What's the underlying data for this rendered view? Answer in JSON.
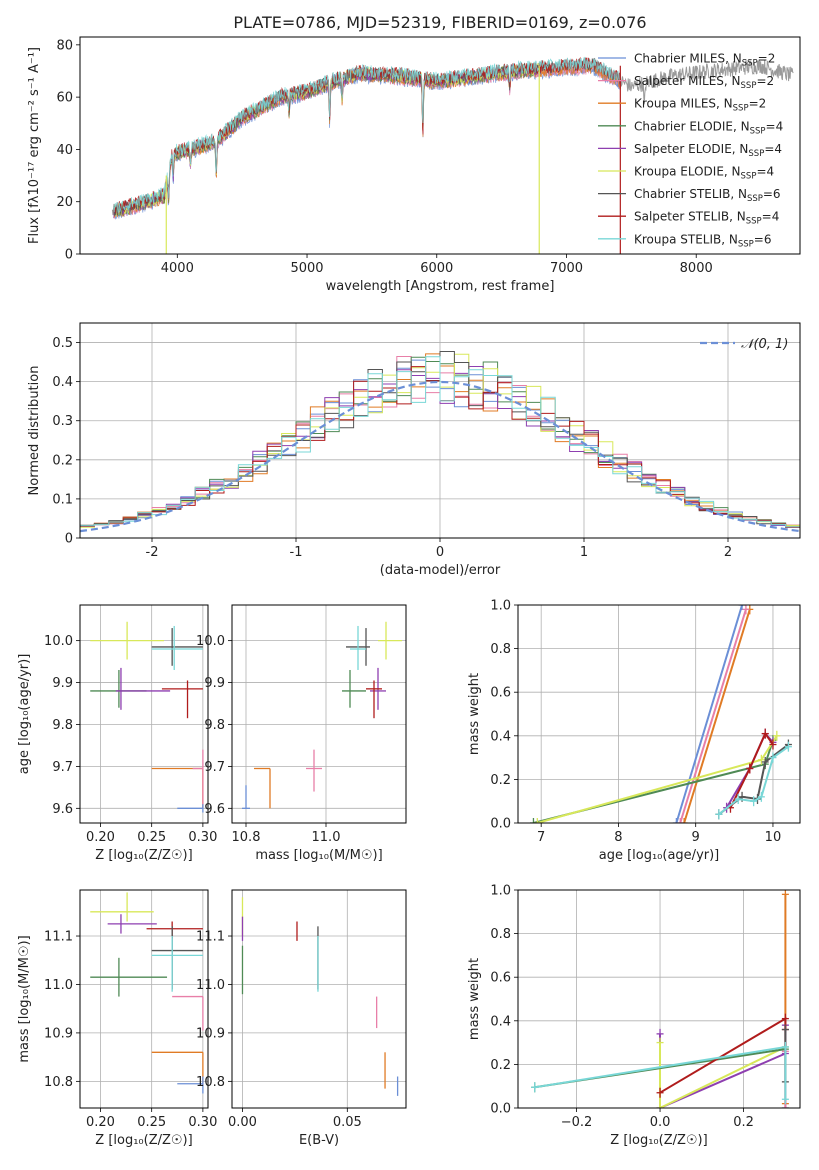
{
  "figure_title": "PLATE=0786, MJD=52319, FIBERID=0169, z=0.076",
  "colors": {
    "Chabrier MILES": "#6b8fd6",
    "Salpeter MILES": "#e87fa8",
    "Kroupa MILES": "#e07b25",
    "Chabrier ELODIE": "#4f8a55",
    "Salpeter ELODIE": "#8e3fb0",
    "Kroupa ELODIE": "#d8e85a",
    "Chabrier STELIB": "#555555",
    "Salpeter STELIB": "#b01c1c",
    "Kroupa STELIB": "#79d7d7"
  },
  "chart_data": [
    {
      "id": "spectrum",
      "type": "line",
      "title": "PLATE=0786, MJD=52319, FIBERID=0169, z=0.076",
      "xlabel": "wavelength [Angstrom, rest frame]",
      "ylabel": "Flux [fλ10⁻¹⁷ erg cm⁻² s⁻¹ A⁻¹]",
      "xlim": [
        3250,
        8800
      ],
      "ylim": [
        0,
        83
      ],
      "xticks": [
        4000,
        5000,
        6000,
        7000,
        8000
      ],
      "yticks": [
        0,
        20,
        40,
        60,
        80
      ],
      "grid": false,
      "legend_position": "right",
      "data_color": "#9a9a9a",
      "continuum": {
        "x": [
          3500,
          3700,
          3900,
          3960,
          4100,
          4300,
          4500,
          4800,
          5000,
          5200,
          5400,
          5700,
          6000,
          6300,
          6600,
          6900,
          7200,
          7500,
          7800,
          8100,
          8500,
          8750
        ],
        "y": [
          16,
          19,
          22,
          38,
          40,
          43,
          52,
          60,
          62,
          66,
          69,
          68,
          66,
          68,
          70,
          71,
          72,
          64,
          68,
          70,
          72,
          68
        ]
      },
      "dips": [
        {
          "x": 3933,
          "depth": 10
        },
        {
          "x": 3968,
          "depth": 9
        },
        {
          "x": 4101,
          "depth": 6
        },
        {
          "x": 4300,
          "depth": 12
        },
        {
          "x": 4861,
          "depth": 6
        },
        {
          "x": 5175,
          "depth": 14
        },
        {
          "x": 5270,
          "depth": 8
        },
        {
          "x": 5893,
          "depth": 20
        },
        {
          "x": 6563,
          "depth": 6
        },
        {
          "x": 7600,
          "depth": 10
        }
      ],
      "legend": [
        {
          "label": "Chabrier MILES, N",
          "sub": "SSP",
          "suffix": "=2",
          "series": "Chabrier MILES"
        },
        {
          "label": "Salpeter MILES, N",
          "sub": "SSP",
          "suffix": "=2",
          "series": "Salpeter MILES"
        },
        {
          "label": "Kroupa MILES, N",
          "sub": "SSP",
          "suffix": "=2",
          "series": "Kroupa MILES"
        },
        {
          "label": "Chabrier ELODIE, N",
          "sub": "SSP",
          "suffix": "=4",
          "series": "Chabrier ELODIE"
        },
        {
          "label": "Salpeter ELODIE, N",
          "sub": "SSP",
          "suffix": "=4",
          "series": "Salpeter ELODIE"
        },
        {
          "label": "Kroupa ELODIE, N",
          "sub": "SSP",
          "suffix": "=4",
          "series": "Kroupa ELODIE"
        },
        {
          "label": "Chabrier STELIB, N",
          "sub": "SSP",
          "suffix": "=6",
          "series": "Chabrier STELIB"
        },
        {
          "label": "Salpeter STELIB, N",
          "sub": "SSP",
          "suffix": "=4",
          "series": "Salpeter STELIB"
        },
        {
          "label": "Kroupa STELIB, N",
          "sub": "SSP",
          "suffix": "=6",
          "series": "Kroupa STELIB"
        }
      ],
      "vertical_drops": [
        {
          "series": "Kroupa ELODIE",
          "x": 3915,
          "y_top": 30
        },
        {
          "series": "Kroupa ELODIE",
          "x": 6790,
          "y_top": 72
        },
        {
          "series": "Salpeter STELIB",
          "x": 7415,
          "y_top": 72
        }
      ]
    },
    {
      "id": "residuals",
      "type": "histogram",
      "xlabel": "(data-model)/error",
      "ylabel": "Normed distribution",
      "xlim": [
        -2.5,
        2.5
      ],
      "ylim": [
        0,
        0.55
      ],
      "xticks": [
        -2,
        -1,
        0,
        1,
        2
      ],
      "yticks": [
        0.0,
        0.1,
        0.2,
        0.3,
        0.4,
        0.5
      ],
      "grid": true,
      "bin_width": 0.1,
      "legend": [
        {
          "label": "𝒩(0, 1)",
          "style": "dashed",
          "color": "#6b8fd6"
        }
      ],
      "legend_position": "top-right",
      "gaussian": {
        "mu": 0,
        "sigma": 1
      }
    },
    {
      "id": "age-vs-Z",
      "type": "errorbar",
      "xlabel": "Z [log₁₀(Z/Z☉)]",
      "ylabel": "age  [log₁₀(age/yr)]",
      "xlim": [
        0.18,
        0.305
      ],
      "ylim": [
        9.565,
        10.085
      ],
      "xticks": [
        0.2,
        0.25,
        0.3
      ],
      "xtick_labels": [
        "0.20",
        "0.25",
        "0.30"
      ],
      "yticks": [
        9.6,
        9.7,
        9.8,
        9.9,
        10.0
      ],
      "ytick_labels": [
        "9.6",
        "9.7",
        "9.8",
        "9.9",
        "10.0"
      ],
      "grid": true,
      "points": [
        {
          "series": "Kroupa ELODIE",
          "x": 0.226,
          "y": 10.0,
          "xlo": 0.19,
          "xhi": 0.262,
          "ylo": 9.955,
          "yhi": 10.045
        },
        {
          "series": "Chabrier STELIB",
          "x": 0.27,
          "y": 9.985,
          "xlo": 0.25,
          "xhi": 0.3,
          "ylo": 9.94,
          "yhi": 10.03
        },
        {
          "series": "Kroupa STELIB",
          "x": 0.272,
          "y": 9.98,
          "xlo": 0.25,
          "xhi": 0.3,
          "ylo": 9.93,
          "yhi": 10.035
        },
        {
          "series": "Chabrier ELODIE",
          "x": 0.218,
          "y": 9.88,
          "xlo": 0.19,
          "xhi": 0.245,
          "ylo": 9.84,
          "yhi": 9.93
        },
        {
          "series": "Salpeter ELODIE",
          "x": 0.22,
          "y": 9.88,
          "xlo": 0.215,
          "xhi": 0.268,
          "ylo": 9.835,
          "yhi": 9.935
        },
        {
          "series": "Salpeter STELIB",
          "x": 0.285,
          "y": 9.885,
          "xlo": 0.26,
          "xhi": 0.3,
          "ylo": 9.815,
          "yhi": 9.905
        },
        {
          "series": "Kroupa MILES",
          "x": 0.3,
          "y": 9.695,
          "xlo": 0.25,
          "xhi": 0.3,
          "ylo": 9.6,
          "yhi": 9.695
        },
        {
          "series": "Salpeter MILES",
          "x": 0.3,
          "y": 9.695,
          "xlo": 0.29,
          "xhi": 0.3,
          "ylo": 9.6,
          "yhi": 9.74
        },
        {
          "series": "Chabrier MILES",
          "x": 0.3,
          "y": 9.6,
          "xlo": 0.275,
          "xhi": 0.3,
          "ylo": 9.59,
          "yhi": 9.61
        }
      ]
    },
    {
      "id": "age-vs-mass",
      "type": "errorbar",
      "xlabel": "mass [log₁₀(M/M☉)]",
      "ylabel": "",
      "xlim": [
        10.765,
        11.2
      ],
      "ylim": [
        9.565,
        10.085
      ],
      "xticks": [
        10.8,
        11.0
      ],
      "xtick_labels": [
        "10.8",
        "11.0"
      ],
      "yticks": [
        9.6,
        9.7,
        9.8,
        9.9,
        10.0
      ],
      "ytick_labels": [
        "9.6",
        "9.7",
        "9.8",
        "9.9",
        "10.0"
      ],
      "grid": true,
      "points": [
        {
          "series": "Kroupa ELODIE",
          "x": 11.15,
          "y": 10.0,
          "xlo": 11.13,
          "xhi": 11.19,
          "ylo": 9.955,
          "yhi": 10.045
        },
        {
          "series": "Chabrier STELIB",
          "x": 11.1,
          "y": 9.985,
          "xlo": 11.05,
          "xhi": 11.11,
          "ylo": 9.94,
          "yhi": 10.03
        },
        {
          "series": "Kroupa STELIB",
          "x": 11.08,
          "y": 9.98,
          "xlo": 11.06,
          "xhi": 11.1,
          "ylo": 9.93,
          "yhi": 10.035
        },
        {
          "series": "Chabrier ELODIE",
          "x": 11.06,
          "y": 9.88,
          "xlo": 11.04,
          "xhi": 11.1,
          "ylo": 9.84,
          "yhi": 9.93
        },
        {
          "series": "Salpeter ELODIE",
          "x": 11.13,
          "y": 9.88,
          "xlo": 11.11,
          "xhi": 11.15,
          "ylo": 9.835,
          "yhi": 9.935
        },
        {
          "series": "Salpeter STELIB",
          "x": 11.12,
          "y": 9.885,
          "xlo": 11.1,
          "xhi": 11.14,
          "ylo": 9.815,
          "yhi": 9.905
        },
        {
          "series": "Kroupa MILES",
          "x": 10.86,
          "y": 9.695,
          "xlo": 10.82,
          "xhi": 10.86,
          "ylo": 9.6,
          "yhi": 9.695
        },
        {
          "series": "Salpeter MILES",
          "x": 10.97,
          "y": 9.695,
          "xlo": 10.95,
          "xhi": 10.99,
          "ylo": 9.64,
          "yhi": 9.74
        },
        {
          "series": "Chabrier MILES",
          "x": 10.8,
          "y": 9.6,
          "xlo": 10.79,
          "xhi": 10.81,
          "ylo": 9.6,
          "yhi": 9.655
        }
      ]
    },
    {
      "id": "mass-weight-vs-age",
      "type": "line",
      "xlabel": "age  [log₁₀(age/yr)]",
      "ylabel": "mass weight",
      "xlim": [
        6.7,
        10.35
      ],
      "ylim": [
        0,
        1
      ],
      "xticks": [
        7,
        8,
        9,
        10
      ],
      "xtick_labels": [
        "7",
        "8",
        "9",
        "10"
      ],
      "yticks": [
        0.0,
        0.2,
        0.4,
        0.6,
        0.8,
        1.0
      ],
      "ytick_labels": [
        "0.0",
        "0.2",
        "0.4",
        "0.6",
        "0.8",
        "1.0"
      ],
      "grid": true,
      "series": [
        {
          "name": "Chabrier MILES",
          "x": [
            8.75,
            9.6
          ],
          "y": [
            0.0,
            1.0
          ]
        },
        {
          "name": "Kroupa MILES",
          "x": [
            8.85,
            9.7
          ],
          "y": [
            0.0,
            0.98
          ]
        },
        {
          "name": "Salpeter MILES",
          "x": [
            8.8,
            9.65
          ],
          "y": [
            0.0,
            0.98
          ]
        },
        {
          "name": "Chabrier ELODIE",
          "x": [
            6.9,
            9.9,
            10.0
          ],
          "y": [
            0.0,
            0.27,
            0.38
          ]
        },
        {
          "name": "Salpeter ELODIE",
          "x": [
            9.4,
            9.7,
            9.9,
            10.0
          ],
          "y": [
            0.07,
            0.25,
            0.41,
            0.37
          ]
        },
        {
          "name": "Kroupa ELODIE",
          "x": [
            6.95,
            9.85,
            10.05
          ],
          "y": [
            0.0,
            0.29,
            0.4
          ]
        },
        {
          "name": "Chabrier STELIB",
          "x": [
            9.3,
            9.6,
            9.8,
            9.9,
            10.2
          ],
          "y": [
            0.04,
            0.12,
            0.11,
            0.28,
            0.36
          ]
        },
        {
          "name": "Salpeter STELIB",
          "x": [
            9.45,
            9.7,
            9.9,
            10.0
          ],
          "y": [
            0.07,
            0.25,
            0.41,
            0.36
          ]
        },
        {
          "name": "Kroupa STELIB",
          "x": [
            9.3,
            9.55,
            9.75,
            9.85,
            10.0,
            10.2
          ],
          "y": [
            0.04,
            0.11,
            0.1,
            0.12,
            0.3,
            0.35
          ]
        }
      ]
    },
    {
      "id": "mass-vs-Z",
      "type": "errorbar",
      "xlabel": "Z [log₁₀(Z/Z☉)]",
      "ylabel": "mass [log₁₀(M/M☉)]",
      "xlim": [
        0.18,
        0.305
      ],
      "ylim": [
        10.745,
        11.195
      ],
      "xticks": [
        0.2,
        0.25,
        0.3
      ],
      "xtick_labels": [
        "0.20",
        "0.25",
        "0.30"
      ],
      "yticks": [
        10.8,
        10.9,
        11.0,
        11.1
      ],
      "ytick_labels": [
        "10.8",
        "10.9",
        "11.0",
        "11.1"
      ],
      "grid": true,
      "points": [
        {
          "series": "Kroupa ELODIE",
          "x": 0.226,
          "y": 11.15,
          "xlo": 0.19,
          "xhi": 0.252,
          "ylo": 11.13,
          "yhi": 11.19
        },
        {
          "series": "Salpeter ELODIE",
          "x": 0.22,
          "y": 11.125,
          "xlo": 0.207,
          "xhi": 0.255,
          "ylo": 11.105,
          "yhi": 11.145
        },
        {
          "series": "Salpeter STELIB",
          "x": 0.27,
          "y": 11.115,
          "xlo": 0.245,
          "xhi": 0.3,
          "ylo": 11.095,
          "yhi": 11.13
        },
        {
          "series": "Chabrier STELIB",
          "x": 0.27,
          "y": 11.07,
          "xlo": 0.25,
          "xhi": 0.3,
          "ylo": 10.99,
          "yhi": 11.12
        },
        {
          "series": "Kroupa STELIB",
          "x": 0.27,
          "y": 11.06,
          "xlo": 0.25,
          "xhi": 0.3,
          "ylo": 10.985,
          "yhi": 11.1
        },
        {
          "series": "Chabrier ELODIE",
          "x": 0.218,
          "y": 11.015,
          "xlo": 0.19,
          "xhi": 0.265,
          "ylo": 10.975,
          "yhi": 11.055
        },
        {
          "series": "Salpeter MILES",
          "x": 0.3,
          "y": 10.975,
          "xlo": 0.27,
          "xhi": 0.3,
          "ylo": 10.905,
          "yhi": 10.975
        },
        {
          "series": "Kroupa MILES",
          "x": 0.3,
          "y": 10.86,
          "xlo": 0.25,
          "xhi": 0.3,
          "ylo": 10.79,
          "yhi": 10.86
        },
        {
          "series": "Chabrier MILES",
          "x": 0.3,
          "y": 10.795,
          "xlo": 0.275,
          "xhi": 0.3,
          "ylo": 10.775,
          "yhi": 10.81
        }
      ]
    },
    {
      "id": "mass-vs-ebv",
      "type": "errorbar",
      "xlabel": "E(B-V)",
      "ylabel": "",
      "xlim": [
        -0.005,
        0.078
      ],
      "ylim": [
        10.745,
        11.195
      ],
      "xticks": [
        0.0,
        0.05
      ],
      "xtick_labels": [
        "0.00",
        "0.05"
      ],
      "yticks": [
        10.8,
        10.9,
        11.0,
        11.1
      ],
      "ytick_labels": [
        "10.8",
        "10.9",
        "11.0",
        "11.1"
      ],
      "grid": true,
      "points": [
        {
          "series": "Kroupa ELODIE",
          "x": 0.0,
          "y": 11.15,
          "xlo": 0.0,
          "xhi": 0.0,
          "ylo": 11.1,
          "yhi": 11.18
        },
        {
          "series": "Chabrier ELODIE",
          "x": 0.0,
          "y": 11.03,
          "xlo": 0.0,
          "xhi": 0.0,
          "ylo": 10.98,
          "yhi": 11.08
        },
        {
          "series": "Salpeter ELODIE",
          "x": 0.0,
          "y": 11.12,
          "xlo": 0.0,
          "xhi": 0.0,
          "ylo": 11.09,
          "yhi": 11.14
        },
        {
          "series": "Salpeter STELIB",
          "x": 0.026,
          "y": 11.115,
          "xlo": 0.026,
          "xhi": 0.026,
          "ylo": 11.09,
          "yhi": 11.13
        },
        {
          "series": "Chabrier STELIB",
          "x": 0.036,
          "y": 11.07,
          "xlo": 0.036,
          "xhi": 0.036,
          "ylo": 10.99,
          "yhi": 11.12
        },
        {
          "series": "Kroupa STELIB",
          "x": 0.036,
          "y": 11.05,
          "xlo": 0.036,
          "xhi": 0.036,
          "ylo": 10.985,
          "yhi": 11.1
        },
        {
          "series": "Salpeter MILES",
          "x": 0.064,
          "y": 10.94,
          "xlo": 0.064,
          "xhi": 0.064,
          "ylo": 10.91,
          "yhi": 10.975
        },
        {
          "series": "Kroupa MILES",
          "x": 0.068,
          "y": 10.82,
          "xlo": 0.068,
          "xhi": 0.068,
          "ylo": 10.785,
          "yhi": 10.86
        },
        {
          "series": "Chabrier MILES",
          "x": 0.074,
          "y": 10.79,
          "xlo": 0.074,
          "xhi": 0.074,
          "ylo": 10.77,
          "yhi": 10.81
        }
      ]
    },
    {
      "id": "mass-weight-vs-Z",
      "type": "line",
      "xlabel": "Z [log₁₀(Z/Z☉)]",
      "ylabel": "mass weight",
      "xlim": [
        -0.34,
        0.335
      ],
      "ylim": [
        0,
        1
      ],
      "xticks": [
        -0.2,
        0.0,
        0.2
      ],
      "xtick_labels": [
        "−0.2",
        "0.0",
        "0.2"
      ],
      "yticks": [
        0.0,
        0.2,
        0.4,
        0.6,
        0.8,
        1.0
      ],
      "ytick_labels": [
        "0.0",
        "0.2",
        "0.4",
        "0.6",
        "0.8",
        "1.0"
      ],
      "grid": true,
      "series": [
        {
          "name": "Kroupa MILES",
          "x": [
            0.3,
            0.3
          ],
          "y": [
            0.02,
            0.98
          ]
        },
        {
          "name": "Chabrier MILES",
          "x": [
            0.3,
            0.3
          ],
          "y": [
            0.0,
            0.28
          ]
        },
        {
          "name": "Salpeter MILES",
          "x": [
            0.3,
            0.3
          ],
          "y": [
            0.0,
            0.26
          ]
        },
        {
          "name": "Salpeter ELODIE",
          "x": [
            0.0,
            0.0,
            0.3,
            0.3
          ],
          "y": [
            0.34,
            0.0,
            0.25,
            0.38
          ]
        },
        {
          "name": "Kroupa ELODIE",
          "x": [
            0.0,
            0.0,
            0.3
          ],
          "y": [
            0.3,
            0.0,
            0.28
          ]
        },
        {
          "name": "Chabrier ELODIE",
          "x": [
            -0.3,
            0.3
          ],
          "y": [
            0.095,
            0.27
          ]
        },
        {
          "name": "Salpeter STELIB",
          "x": [
            0.0,
            0.3,
            0.3
          ],
          "y": [
            0.07,
            0.41,
            0.36
          ]
        },
        {
          "name": "Chabrier STELIB",
          "x": [
            0.3,
            0.3
          ],
          "y": [
            0.12,
            0.36
          ]
        },
        {
          "name": "Kroupa STELIB",
          "x": [
            -0.3,
            0.3,
            0.3
          ],
          "y": [
            0.095,
            0.28,
            0.04
          ]
        }
      ]
    }
  ]
}
